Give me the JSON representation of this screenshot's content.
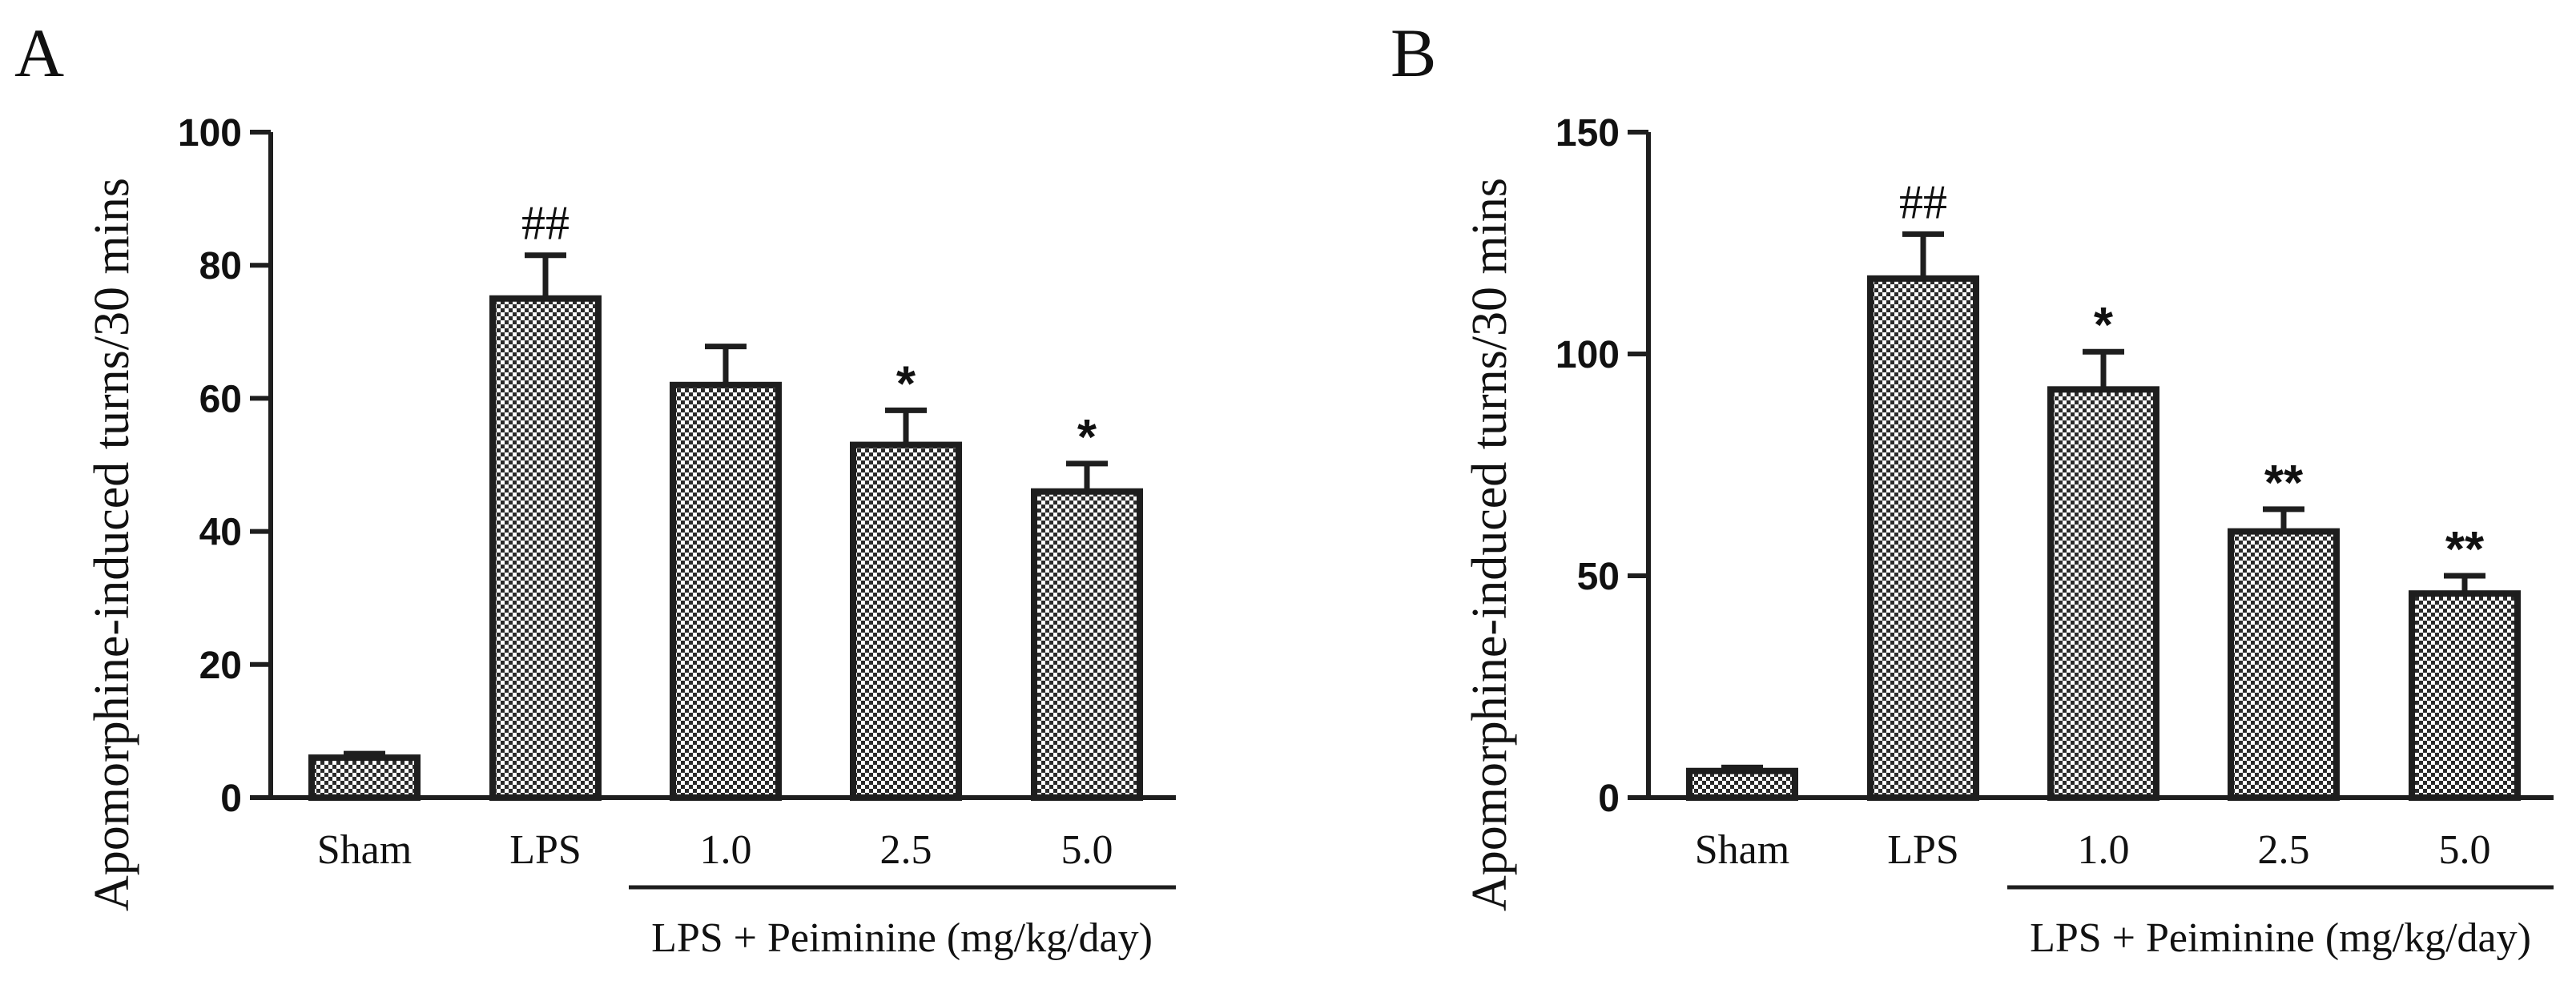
{
  "colors": {
    "ink": "#1e1e1e",
    "background": "#ffffff",
    "bar_fill": "checkered-gray"
  },
  "chart_data": [
    {
      "type": "bar",
      "panel_label": "A",
      "categories": [
        "Sham",
        "LPS",
        "1.0",
        "2.5",
        "5.0"
      ],
      "values": [
        6,
        75,
        62,
        53,
        46
      ],
      "error": [
        0.6,
        6.5,
        5.8,
        5.2,
        4.2
      ],
      "significance": [
        "",
        "##",
        "",
        "*",
        "*"
      ],
      "ylabel": "Apomorphine-induced turns/30 mins",
      "ylim": [
        0,
        100
      ],
      "yticks": [
        0,
        20,
        40,
        60,
        80,
        100
      ],
      "group_label": "LPS + Peiminine (mg/kg/day)",
      "group_categories": [
        "1.0",
        "2.5",
        "5.0"
      ]
    },
    {
      "type": "bar",
      "panel_label": "B",
      "categories": [
        "Sham",
        "LPS",
        "1.0",
        "2.5",
        "5.0"
      ],
      "values": [
        6,
        117,
        92,
        60,
        46
      ],
      "error": [
        0.8,
        10,
        8.5,
        5,
        4
      ],
      "significance": [
        "",
        "##",
        "*",
        "**",
        "**"
      ],
      "ylabel": "Apomorphine-induced turns/30 mins",
      "ylim": [
        0,
        150
      ],
      "yticks": [
        0,
        50,
        100,
        150
      ],
      "group_label": "LPS + Peiminine (mg/kg/day)",
      "group_categories": [
        "1.0",
        "2.5",
        "5.0"
      ]
    }
  ]
}
